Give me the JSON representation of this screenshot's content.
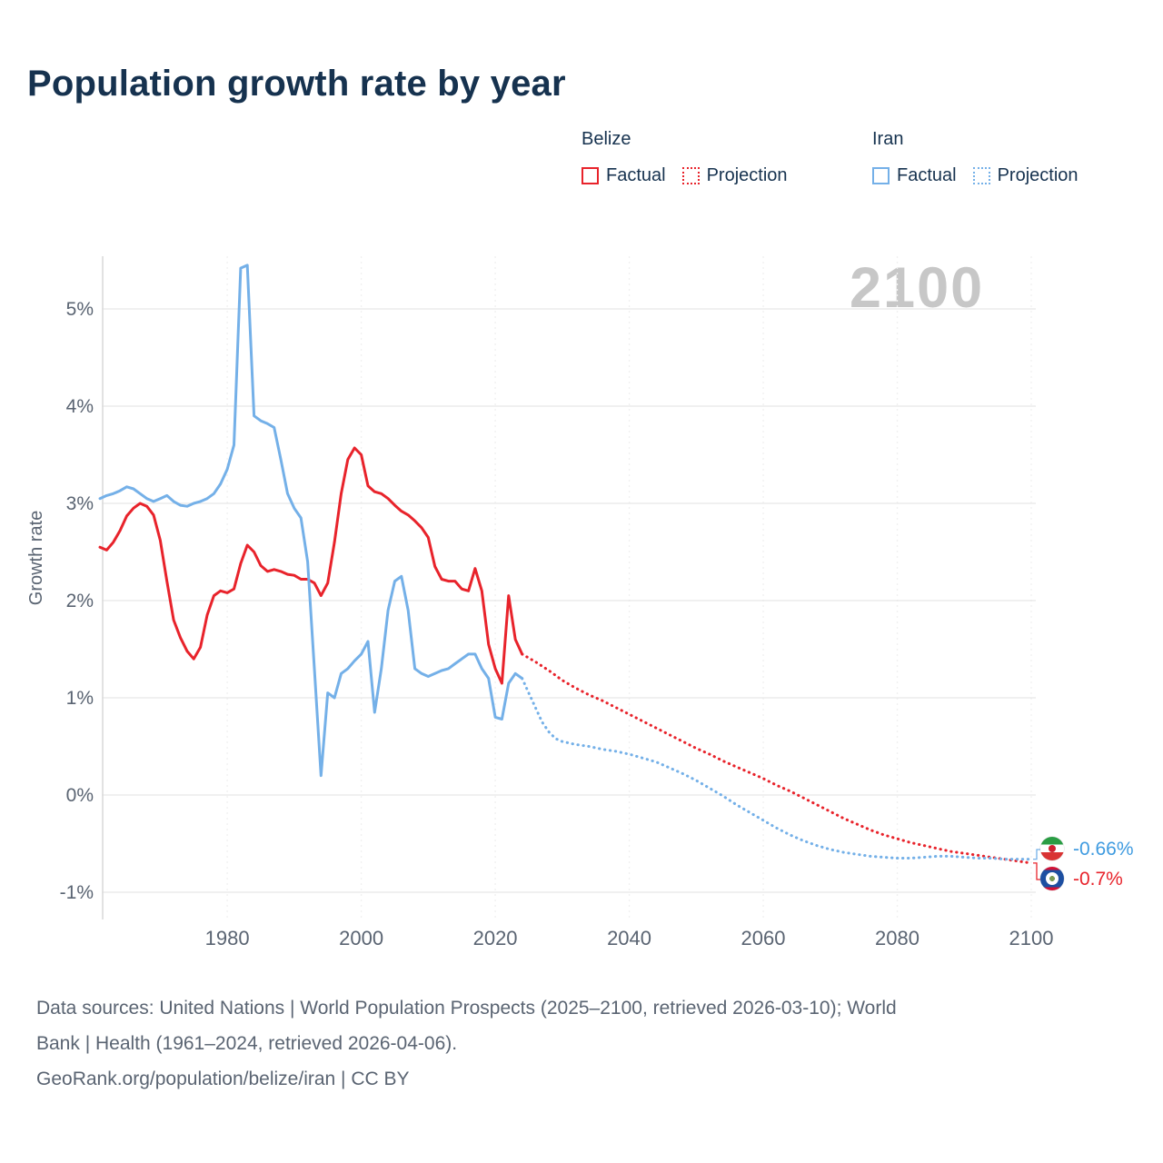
{
  "title": "Population growth rate by year",
  "watermark": "2100",
  "colors": {
    "belize_series": "#e8232b",
    "iran_series": "#74b0e8",
    "iran_label_text": "#3f9be0",
    "title_text": "#16324f",
    "axis_text": "#5a6472",
    "grid_line": "#e6e6e6",
    "axis_line": "#d9d9d9",
    "watermark_text": "#c7c7c7"
  },
  "legend": {
    "groups": [
      {
        "country": "Belize",
        "factual": "Factual",
        "projection": "Projection"
      },
      {
        "country": "Iran",
        "factual": "Factual",
        "projection": "Projection"
      }
    ]
  },
  "end_labels": {
    "iran": "-0.66%",
    "belize": "-0.7%"
  },
  "footer": {
    "line1": "Data sources: United Nations | World Population Prospects (2025–2100, retrieved 2026-03-10); World",
    "line2": "Bank | Health (1961–2024, retrieved 2026-04-06).",
    "line3": "GeoRank.org/population/belize/iran | CC BY"
  },
  "chart_data": {
    "type": "line",
    "title": "Population growth rate by year",
    "xlabel": "",
    "ylabel": "Growth rate",
    "xlim": [
      1961,
      2100
    ],
    "ylim": [
      -1.3,
      5.6
    ],
    "yticks": [
      5,
      4,
      3,
      2,
      1,
      0,
      -1
    ],
    "ytick_suffix": "%",
    "xticks": [
      1980,
      2000,
      2020,
      2040,
      2060,
      2080,
      2100
    ],
    "grid": "horizontal solid, vertical dashed",
    "legend_position": "top-right",
    "end_values": {
      "Iran": -0.66,
      "Belize": -0.7
    },
    "series": [
      {
        "name": "Belize Factual",
        "style": "solid",
        "color": "#e8232b",
        "points": [
          [
            1961,
            2.55
          ],
          [
            1962,
            2.52
          ],
          [
            1963,
            2.6
          ],
          [
            1964,
            2.72
          ],
          [
            1965,
            2.87
          ],
          [
            1966,
            2.95
          ],
          [
            1967,
            3.0
          ],
          [
            1968,
            2.97
          ],
          [
            1969,
            2.88
          ],
          [
            1970,
            2.62
          ],
          [
            1971,
            2.2
          ],
          [
            1972,
            1.8
          ],
          [
            1973,
            1.62
          ],
          [
            1974,
            1.48
          ],
          [
            1975,
            1.4
          ],
          [
            1976,
            1.52
          ],
          [
            1977,
            1.85
          ],
          [
            1978,
            2.05
          ],
          [
            1979,
            2.1
          ],
          [
            1980,
            2.08
          ],
          [
            1981,
            2.12
          ],
          [
            1982,
            2.38
          ],
          [
            1983,
            2.57
          ],
          [
            1984,
            2.5
          ],
          [
            1985,
            2.36
          ],
          [
            1986,
            2.3
          ],
          [
            1987,
            2.32
          ],
          [
            1988,
            2.3
          ],
          [
            1989,
            2.27
          ],
          [
            1990,
            2.26
          ],
          [
            1991,
            2.22
          ],
          [
            1992,
            2.22
          ],
          [
            1993,
            2.18
          ],
          [
            1994,
            2.05
          ],
          [
            1995,
            2.18
          ],
          [
            1996,
            2.6
          ],
          [
            1997,
            3.1
          ],
          [
            1998,
            3.45
          ],
          [
            1999,
            3.57
          ],
          [
            2000,
            3.5
          ],
          [
            2001,
            3.18
          ],
          [
            2002,
            3.12
          ],
          [
            2003,
            3.1
          ],
          [
            2004,
            3.05
          ],
          [
            2005,
            2.98
          ],
          [
            2006,
            2.92
          ],
          [
            2007,
            2.88
          ],
          [
            2008,
            2.82
          ],
          [
            2009,
            2.75
          ],
          [
            2010,
            2.65
          ],
          [
            2011,
            2.35
          ],
          [
            2012,
            2.22
          ],
          [
            2013,
            2.2
          ],
          [
            2014,
            2.2
          ],
          [
            2015,
            2.12
          ],
          [
            2016,
            2.1
          ],
          [
            2017,
            2.33
          ],
          [
            2018,
            2.1
          ],
          [
            2019,
            1.55
          ],
          [
            2020,
            1.3
          ],
          [
            2021,
            1.15
          ],
          [
            2022,
            2.05
          ],
          [
            2023,
            1.6
          ],
          [
            2024,
            1.45
          ]
        ]
      },
      {
        "name": "Belize Projection",
        "style": "dotted",
        "color": "#e8232b",
        "points": [
          [
            2024,
            1.45
          ],
          [
            2026,
            1.37
          ],
          [
            2028,
            1.28
          ],
          [
            2030,
            1.18
          ],
          [
            2032,
            1.1
          ],
          [
            2034,
            1.03
          ],
          [
            2036,
            0.97
          ],
          [
            2038,
            0.9
          ],
          [
            2040,
            0.83
          ],
          [
            2042,
            0.76
          ],
          [
            2044,
            0.69
          ],
          [
            2046,
            0.62
          ],
          [
            2048,
            0.55
          ],
          [
            2050,
            0.48
          ],
          [
            2052,
            0.42
          ],
          [
            2054,
            0.35
          ],
          [
            2056,
            0.29
          ],
          [
            2058,
            0.23
          ],
          [
            2060,
            0.17
          ],
          [
            2062,
            0.1
          ],
          [
            2064,
            0.04
          ],
          [
            2066,
            -0.03
          ],
          [
            2068,
            -0.1
          ],
          [
            2070,
            -0.17
          ],
          [
            2072,
            -0.24
          ],
          [
            2074,
            -0.3
          ],
          [
            2076,
            -0.36
          ],
          [
            2078,
            -0.41
          ],
          [
            2080,
            -0.45
          ],
          [
            2082,
            -0.49
          ],
          [
            2084,
            -0.52
          ],
          [
            2086,
            -0.55
          ],
          [
            2088,
            -0.58
          ],
          [
            2090,
            -0.6
          ],
          [
            2092,
            -0.62
          ],
          [
            2094,
            -0.64
          ],
          [
            2096,
            -0.66
          ],
          [
            2098,
            -0.68
          ],
          [
            2100,
            -0.7
          ]
        ]
      },
      {
        "name": "Iran Factual",
        "style": "solid",
        "color": "#74b0e8",
        "points": [
          [
            1961,
            3.05
          ],
          [
            1962,
            3.08
          ],
          [
            1963,
            3.1
          ],
          [
            1964,
            3.13
          ],
          [
            1965,
            3.17
          ],
          [
            1966,
            3.15
          ],
          [
            1967,
            3.1
          ],
          [
            1968,
            3.05
          ],
          [
            1969,
            3.02
          ],
          [
            1970,
            3.05
          ],
          [
            1971,
            3.08
          ],
          [
            1972,
            3.02
          ],
          [
            1973,
            2.98
          ],
          [
            1974,
            2.97
          ],
          [
            1975,
            3.0
          ],
          [
            1976,
            3.02
          ],
          [
            1977,
            3.05
          ],
          [
            1978,
            3.1
          ],
          [
            1979,
            3.2
          ],
          [
            1980,
            3.35
          ],
          [
            1981,
            3.6
          ],
          [
            1982,
            5.42
          ],
          [
            1983,
            5.45
          ],
          [
            1984,
            3.9
          ],
          [
            1985,
            3.85
          ],
          [
            1986,
            3.82
          ],
          [
            1987,
            3.78
          ],
          [
            1988,
            3.45
          ],
          [
            1989,
            3.1
          ],
          [
            1990,
            2.95
          ],
          [
            1991,
            2.85
          ],
          [
            1992,
            2.4
          ],
          [
            1993,
            1.3
          ],
          [
            1994,
            0.2
          ],
          [
            1995,
            1.05
          ],
          [
            1996,
            1.0
          ],
          [
            1997,
            1.25
          ],
          [
            1998,
            1.3
          ],
          [
            1999,
            1.38
          ],
          [
            2000,
            1.45
          ],
          [
            2001,
            1.58
          ],
          [
            2002,
            0.85
          ],
          [
            2003,
            1.3
          ],
          [
            2004,
            1.9
          ],
          [
            2005,
            2.2
          ],
          [
            2006,
            2.25
          ],
          [
            2007,
            1.9
          ],
          [
            2008,
            1.3
          ],
          [
            2009,
            1.25
          ],
          [
            2010,
            1.22
          ],
          [
            2011,
            1.25
          ],
          [
            2012,
            1.28
          ],
          [
            2013,
            1.3
          ],
          [
            2014,
            1.35
          ],
          [
            2015,
            1.4
          ],
          [
            2016,
            1.45
          ],
          [
            2017,
            1.45
          ],
          [
            2018,
            1.3
          ],
          [
            2019,
            1.2
          ],
          [
            2020,
            0.8
          ],
          [
            2021,
            0.78
          ],
          [
            2022,
            1.15
          ],
          [
            2023,
            1.25
          ],
          [
            2024,
            1.2
          ]
        ]
      },
      {
        "name": "Iran Projection",
        "style": "dotted",
        "color": "#74b0e8",
        "points": [
          [
            2024,
            1.2
          ],
          [
            2025,
            1.05
          ],
          [
            2026,
            0.9
          ],
          [
            2027,
            0.75
          ],
          [
            2028,
            0.65
          ],
          [
            2029,
            0.58
          ],
          [
            2030,
            0.55
          ],
          [
            2032,
            0.52
          ],
          [
            2034,
            0.5
          ],
          [
            2036,
            0.47
          ],
          [
            2038,
            0.45
          ],
          [
            2040,
            0.42
          ],
          [
            2042,
            0.38
          ],
          [
            2044,
            0.34
          ],
          [
            2046,
            0.28
          ],
          [
            2048,
            0.22
          ],
          [
            2050,
            0.15
          ],
          [
            2052,
            0.07
          ],
          [
            2054,
            -0.01
          ],
          [
            2056,
            -0.1
          ],
          [
            2058,
            -0.18
          ],
          [
            2060,
            -0.26
          ],
          [
            2062,
            -0.34
          ],
          [
            2064,
            -0.41
          ],
          [
            2066,
            -0.47
          ],
          [
            2068,
            -0.52
          ],
          [
            2070,
            -0.56
          ],
          [
            2072,
            -0.59
          ],
          [
            2074,
            -0.61
          ],
          [
            2076,
            -0.63
          ],
          [
            2078,
            -0.64
          ],
          [
            2080,
            -0.65
          ],
          [
            2082,
            -0.65
          ],
          [
            2084,
            -0.64
          ],
          [
            2086,
            -0.63
          ],
          [
            2088,
            -0.63
          ],
          [
            2090,
            -0.64
          ],
          [
            2092,
            -0.65
          ],
          [
            2094,
            -0.65
          ],
          [
            2096,
            -0.66
          ],
          [
            2098,
            -0.66
          ],
          [
            2100,
            -0.66
          ]
        ]
      }
    ]
  }
}
